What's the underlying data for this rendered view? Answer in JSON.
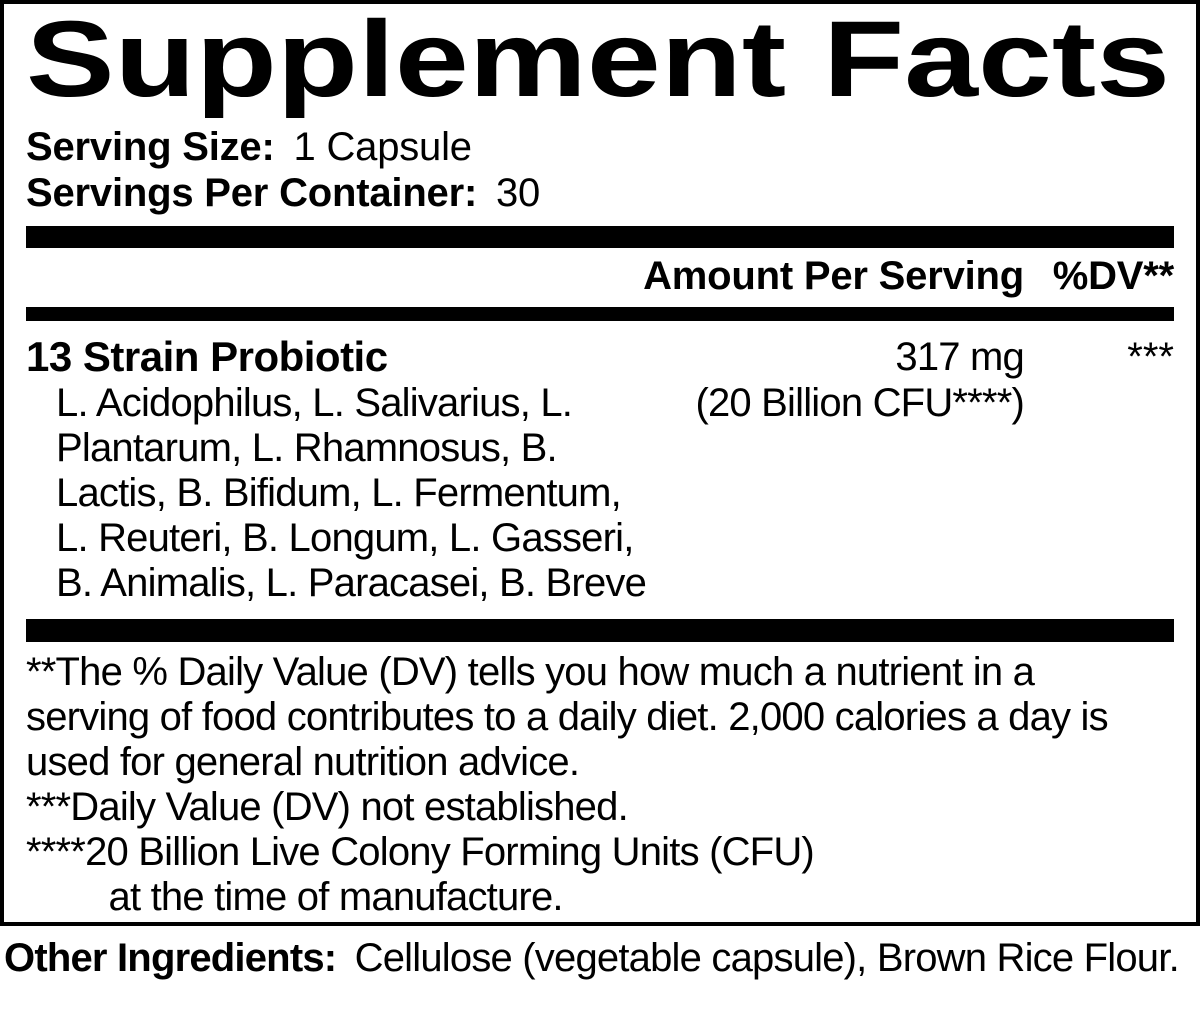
{
  "title": "Supplement Facts",
  "serving_info": {
    "size_label": "Serving Size:",
    "size_value": "1 Capsule",
    "per_container_label": "Servings Per Container:",
    "per_container_value": "30"
  },
  "table": {
    "amount_header": "Amount Per Serving",
    "dv_header": "%DV**",
    "rows": [
      {
        "name": "13 Strain Probiotic",
        "amount": "317 mg",
        "amount_detail": "(20 Billion CFU****)",
        "dv": "***",
        "ingredients_lines": [
          "L. Acidophilus, L. Salivarius, L.",
          "Plantarum, L. Rhamnosus, B.",
          "Lactis, B. Bifidum, L. Fermentum,",
          "L. Reuteri, B. Longum, L. Gasseri,",
          "B. Animalis, L. Paracasei, B. Breve"
        ]
      }
    ]
  },
  "footnotes": [
    "**The % Daily Value (DV) tells you how much a nutrient in a",
    "serving of food contributes to a daily diet. 2,000 calories a day is",
    "used for general nutrition advice.",
    "***Daily Value (DV) not established.",
    "****20 Billion Live Colony Forming Units (CFU)",
    "        at the time of manufacture."
  ],
  "other_ingredients": {
    "label": "Other Ingredients:",
    "value": "Cellulose (vegetable capsule), Brown Rice Flour."
  },
  "colors": {
    "ink": "#000000",
    "paper": "#ffffff"
  }
}
